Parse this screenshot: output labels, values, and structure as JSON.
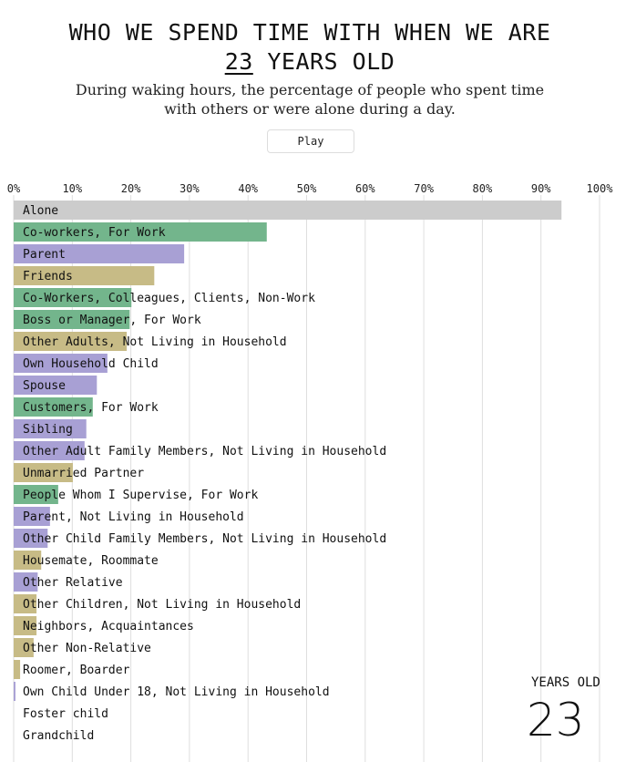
{
  "header": {
    "title_line1": "WHO WE SPEND TIME WITH WHEN WE ARE",
    "age": "23",
    "title_line2_suffix": " YEARS OLD",
    "subtitle_line1": "During waking hours, the percentage of people who spent time",
    "subtitle_line2": "with others or were alone during a day.",
    "play_label": "Play"
  },
  "age_display": {
    "label": "YEARS OLD",
    "value": "23"
  },
  "colors": {
    "alone": "#cccccc",
    "work": "#73b58c",
    "family": "#a8a0d4",
    "other": "#c7bb86"
  },
  "chart_data": {
    "type": "bar",
    "orientation": "horizontal",
    "xlim": [
      0,
      100
    ],
    "x_ticks": [
      "0%",
      "10%",
      "20%",
      "30%",
      "40%",
      "50%",
      "60%",
      "70%",
      "80%",
      "90%",
      "100%"
    ],
    "grid": true,
    "unit": "%",
    "bars": [
      {
        "label": "Alone",
        "value": 93.5,
        "group": "alone"
      },
      {
        "label": "Co-workers, For Work",
        "value": 43.2,
        "group": "work"
      },
      {
        "label": "Parent",
        "value": 29.1,
        "group": "family"
      },
      {
        "label": "Friends",
        "value": 24.0,
        "group": "other"
      },
      {
        "label": "Co-Workers, Colleagues, Clients, Non-Work",
        "value": 20.1,
        "group": "work"
      },
      {
        "label": "Boss or Manager, For Work",
        "value": 19.8,
        "group": "work"
      },
      {
        "label": "Other Adults, Not Living in Household",
        "value": 19.3,
        "group": "other"
      },
      {
        "label": "Own Household Child",
        "value": 16.0,
        "group": "family"
      },
      {
        "label": "Spouse",
        "value": 14.2,
        "group": "family"
      },
      {
        "label": "Customers, For Work",
        "value": 13.5,
        "group": "work"
      },
      {
        "label": "Sibling",
        "value": 12.4,
        "group": "family"
      },
      {
        "label": "Other Adult Family Members, Not Living in Household",
        "value": 12.1,
        "group": "family"
      },
      {
        "label": "Unmarried Partner",
        "value": 10.1,
        "group": "other"
      },
      {
        "label": "People Whom I Supervise, For Work",
        "value": 7.6,
        "group": "work"
      },
      {
        "label": "Parent, Not Living in Household",
        "value": 6.2,
        "group": "family"
      },
      {
        "label": "Other Child Family Members, Not Living in Household",
        "value": 5.8,
        "group": "family"
      },
      {
        "label": "Housemate, Roommate",
        "value": 4.7,
        "group": "other"
      },
      {
        "label": "Other Relative",
        "value": 4.1,
        "group": "family"
      },
      {
        "label": "Other Children, Not Living in Household",
        "value": 3.9,
        "group": "other"
      },
      {
        "label": "Neighbors, Acquaintances",
        "value": 3.9,
        "group": "other"
      },
      {
        "label": "Other Non-Relative",
        "value": 3.4,
        "group": "other"
      },
      {
        "label": "Roomer, Boarder",
        "value": 1.1,
        "group": "other"
      },
      {
        "label": "Own Child Under 18, Not Living in Household",
        "value": 0.3,
        "group": "family"
      },
      {
        "label": "Foster child",
        "value": 0,
        "group": "family"
      },
      {
        "label": "Grandchild",
        "value": 0,
        "group": "family"
      }
    ]
  }
}
